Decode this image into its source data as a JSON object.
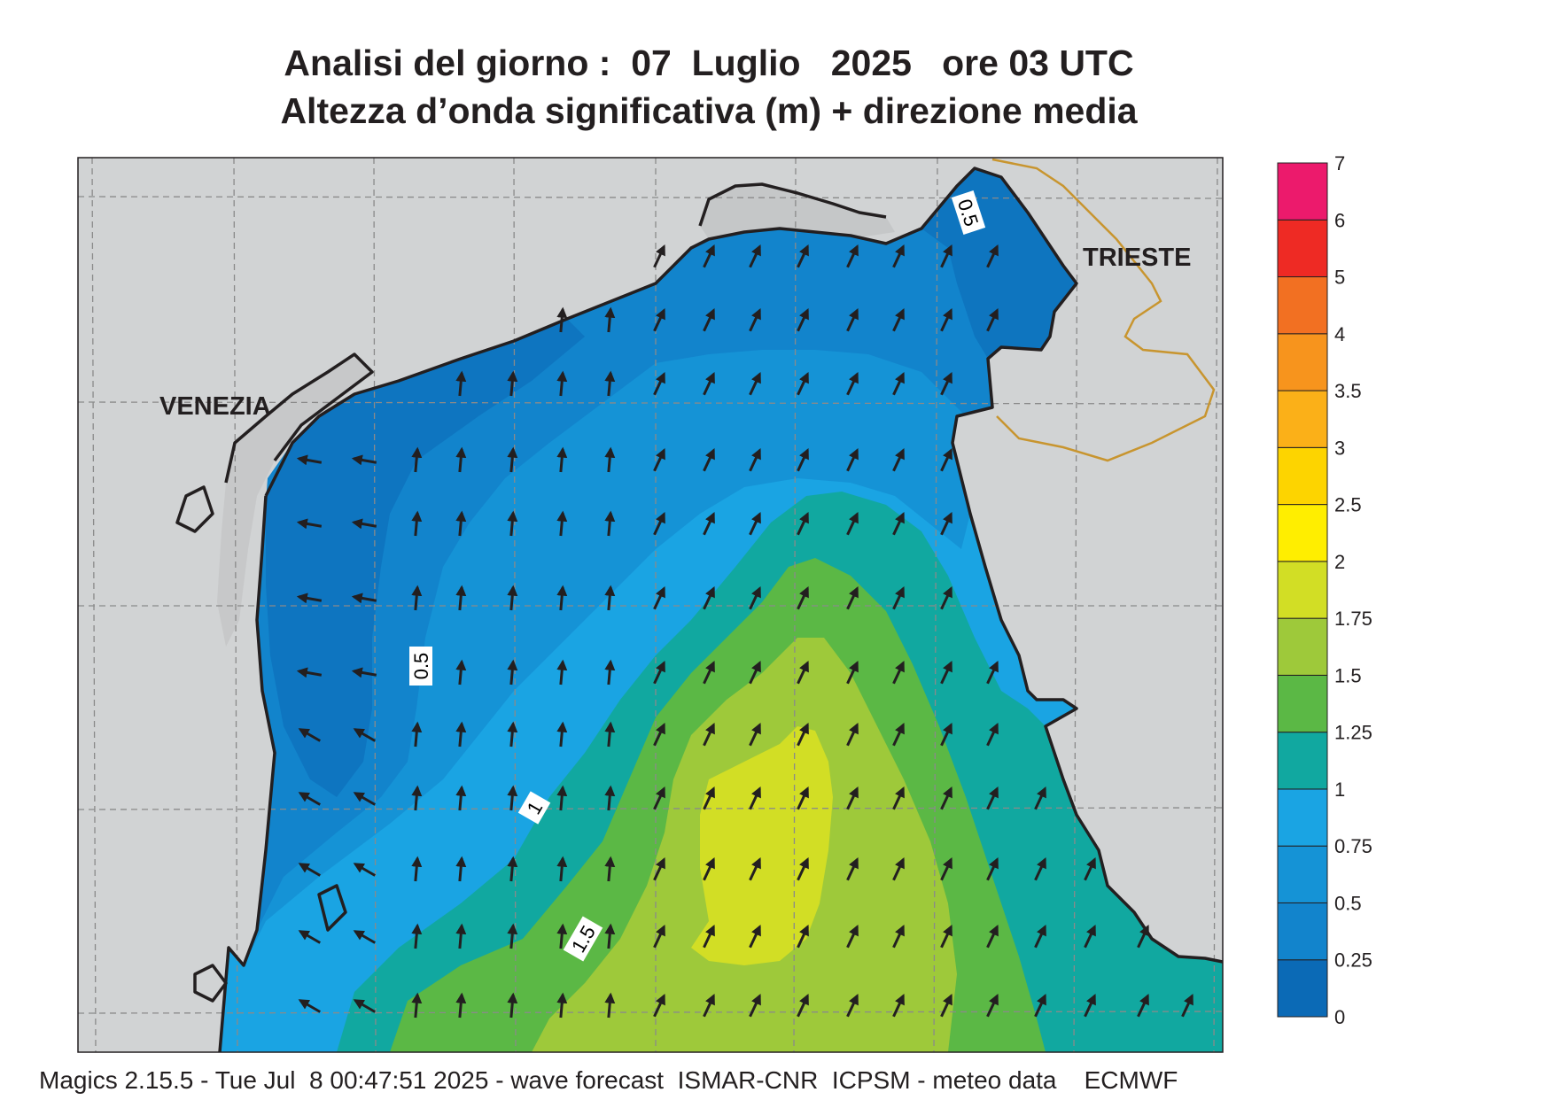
{
  "title": {
    "line1": "Analisi del giorno :  07  Luglio   2025   ore 03 UTC",
    "line2": "Altezza d’onda significativa (m) + direzione media"
  },
  "cities": {
    "venezia": "VENEZIA",
    "trieste": "TRIESTE"
  },
  "contour_labels": {
    "c05a": "0.5",
    "c05b": "0.5",
    "c1": "1",
    "c15": "1.5"
  },
  "legend": {
    "levels": [
      "0",
      "0.25",
      "0.5",
      "0.75",
      "1",
      "1.25",
      "1.5",
      "1.75",
      "2",
      "2.5",
      "3",
      "3.5",
      "4",
      "5",
      "6",
      "7"
    ],
    "colors": [
      "#0b6ab6",
      "#1284cc",
      "#1593d6",
      "#1aa4e3",
      "#11a8a0",
      "#5bb845",
      "#9ec93a",
      "#d2de25",
      "#ffee00",
      "#fdd400",
      "#fbb018",
      "#f7941d",
      "#f27022",
      "#ee2a24",
      "#ec1a6c"
    ]
  },
  "colors": {
    "land": "#d1d3d4",
    "coast": "#231f20",
    "border": "#c8952f"
  },
  "arrow_direction": "north-northeast",
  "footer": "Magics 2.15.5 - Tue Jul  8 00:47:51 2025 - wave forecast  ISMAR-CNR  ICPSM - meteo data    ECMWF"
}
